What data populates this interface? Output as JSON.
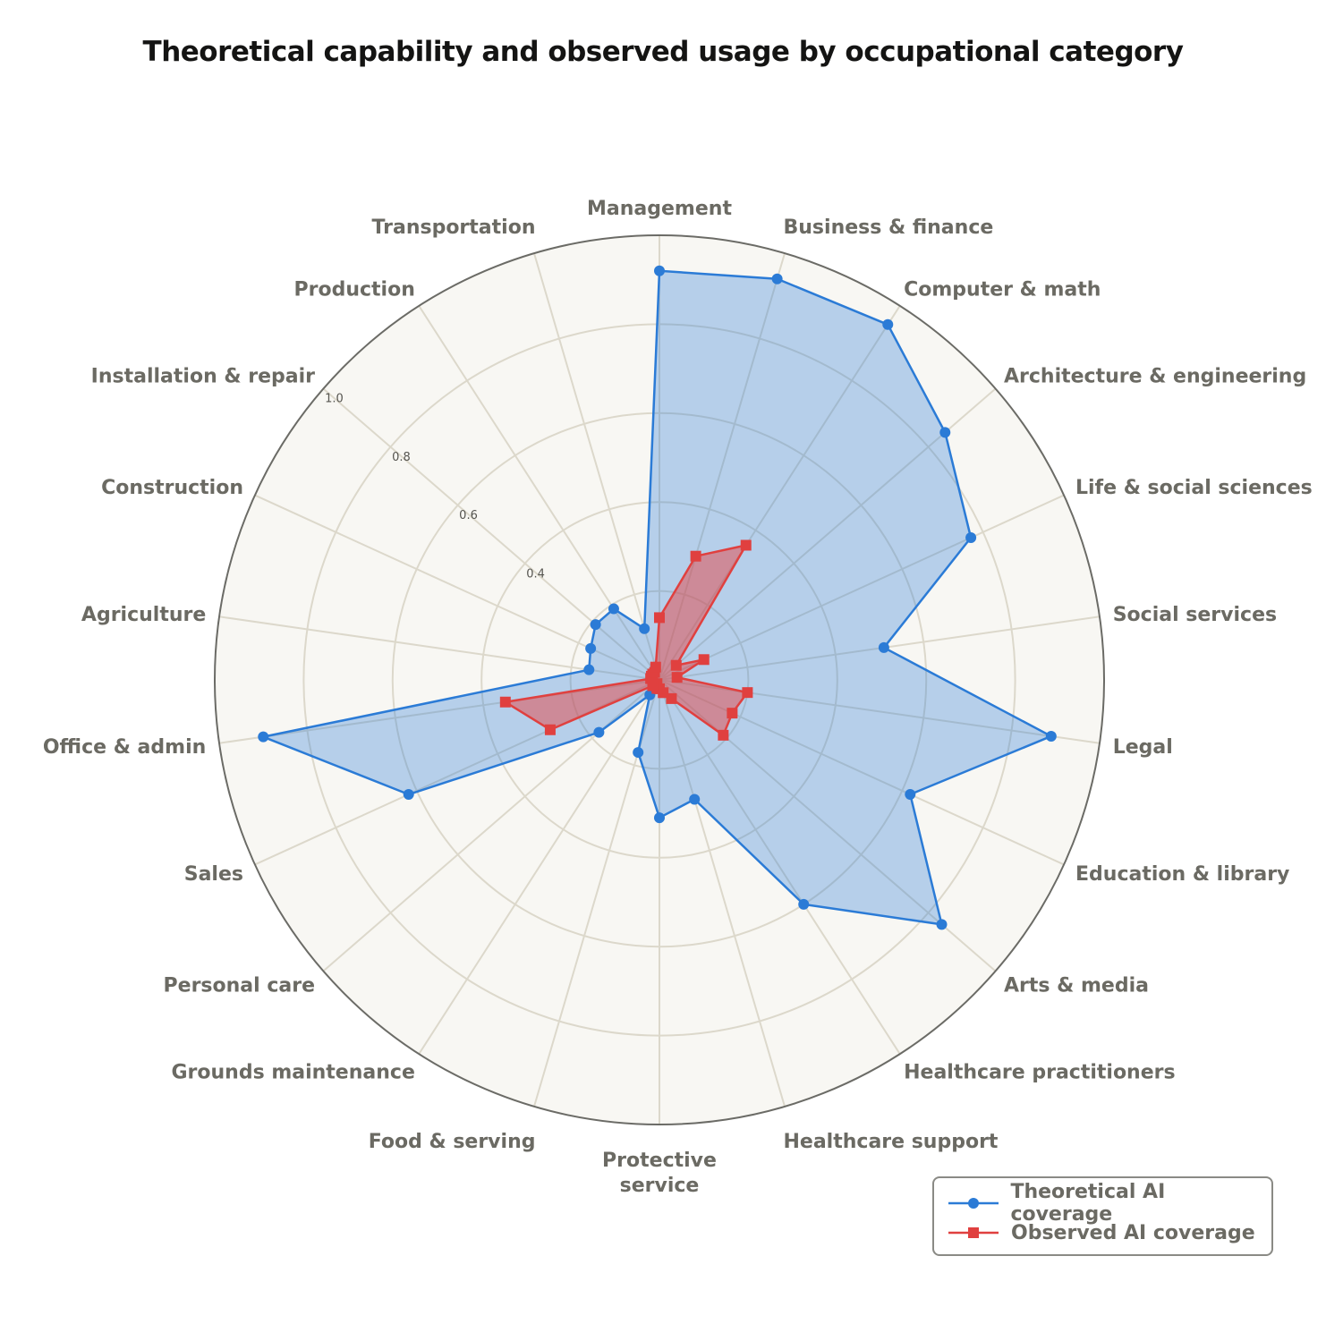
{
  "chart_data": {
    "type": "radar",
    "title": "Theoretical capability and observed usage by occupational category",
    "categories": [
      "Management",
      "Business & finance",
      "Computer & math",
      "Architecture & engineering",
      "Life & social sciences",
      "Social services",
      "Legal",
      "Education & library",
      "Arts & media",
      "Healthcare practitioners",
      "Healthcare support",
      "Protective service",
      "Food & serving",
      "Grounds maintenance",
      "Personal care",
      "Sales",
      "Office & admin",
      "Agriculture",
      "Construction",
      "Installation & repair",
      "Production",
      "Transportation"
    ],
    "radial_ticks": [
      "0.4",
      "0.6",
      "0.8",
      "1.0"
    ],
    "radial_range": [
      0,
      1.0
    ],
    "grid": true,
    "legend_position": "bottom-right",
    "series": [
      {
        "name": "Theoretical AI coverage",
        "color": "#2b7bd6",
        "marker": "circle",
        "values": [
          0.92,
          0.94,
          0.95,
          0.85,
          0.77,
          0.51,
          0.89,
          0.62,
          0.84,
          0.6,
          0.28,
          0.31,
          0.17,
          0.04,
          0.18,
          0.62,
          0.9,
          0.16,
          0.17,
          0.19,
          0.19,
          0.12
        ]
      },
      {
        "name": "Observed AI coverage",
        "color": "#e0403f",
        "marker": "square",
        "values": [
          0.14,
          0.29,
          0.36,
          0.05,
          0.11,
          0.04,
          0.2,
          0.18,
          0.19,
          0.05,
          0.03,
          0.02,
          0.02,
          0.01,
          0.02,
          0.27,
          0.35,
          0.02,
          0.02,
          0.02,
          0.02,
          0.03
        ]
      }
    ]
  }
}
